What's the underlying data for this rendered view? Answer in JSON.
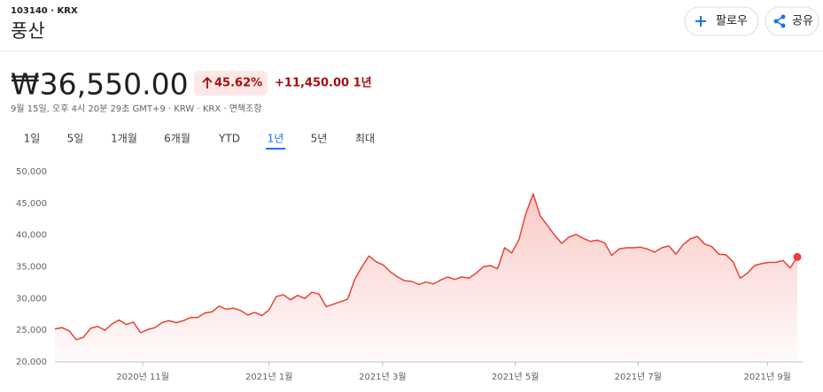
{
  "header": {
    "ticker": "103140 · KRX",
    "name": "풍산",
    "buttons": [
      "팔로우",
      "공유"
    ],
    "price": "₩36,550.00",
    "change_pct": "45.62%",
    "change": "+11,450.00 1년",
    "timestamp": "9월 15일, 오후 4시 20분 29초 GMT+9 · KRW · KRX · 면책조항",
    "tabs": [
      "1일",
      "5일",
      "1개월",
      "6개월",
      "YTD",
      "1년",
      "5년",
      "최대"
    ],
    "selected_tab": 5
  },
  "chart_data": {
    "type": "line",
    "color": "#e94235",
    "values": [
      25200,
      25400,
      24900,
      23500,
      23900,
      25300,
      25600,
      25000,
      26000,
      26600,
      25900,
      26300,
      24600,
      25100,
      25400,
      26200,
      26500,
      26200,
      26500,
      27000,
      27000,
      27700,
      27900,
      28800,
      28300,
      28500,
      28100,
      27400,
      27800,
      27300,
      28200,
      30300,
      30600,
      29800,
      30500,
      30000,
      31000,
      30700,
      28700,
      29100,
      29500,
      29900,
      33000,
      35000,
      36700,
      35800,
      35300,
      34200,
      33400,
      32800,
      32700,
      32200,
      32600,
      32300,
      32900,
      33400,
      33000,
      33400,
      33200,
      34000,
      35000,
      35200,
      34700,
      38000,
      37200,
      39300,
      43500,
      46500,
      43000,
      41500,
      40000,
      38700,
      39700,
      40100,
      39500,
      39000,
      39200,
      38800,
      36800,
      37800,
      38000,
      38000,
      38100,
      37800,
      37300,
      38000,
      38300,
      37000,
      38500,
      39400,
      39800,
      38600,
      38200,
      37000,
      36900,
      35800,
      33200,
      34000,
      35200,
      35500,
      35700,
      35700,
      36000,
      34800,
      36550
    ],
    "xlim": [
      0,
      104
    ],
    "xticks": [
      {
        "value": 12.3,
        "label": "2020년 11월"
      },
      {
        "value": 30,
        "label": "2021년 1월"
      },
      {
        "value": 45.9,
        "label": "2021년 3월"
      },
      {
        "value": 64.5,
        "label": "2021년 5월"
      },
      {
        "value": 81.7,
        "label": "2021년 7월"
      },
      {
        "value": 99.8,
        "label": "2021년 9월"
      }
    ],
    "ylim": [
      20000,
      50000
    ],
    "yticks": [
      {
        "value": 20000,
        "label": "20,000"
      },
      {
        "value": 25000,
        "label": "25,000"
      },
      {
        "value": 30000,
        "label": "30,000"
      },
      {
        "value": 35000,
        "label": "35,000"
      },
      {
        "value": 40000,
        "label": "40,000"
      },
      {
        "value": 45000,
        "label": "45,000"
      },
      {
        "value": 50000,
        "label": "50,000"
      }
    ],
    "grid": false
  }
}
